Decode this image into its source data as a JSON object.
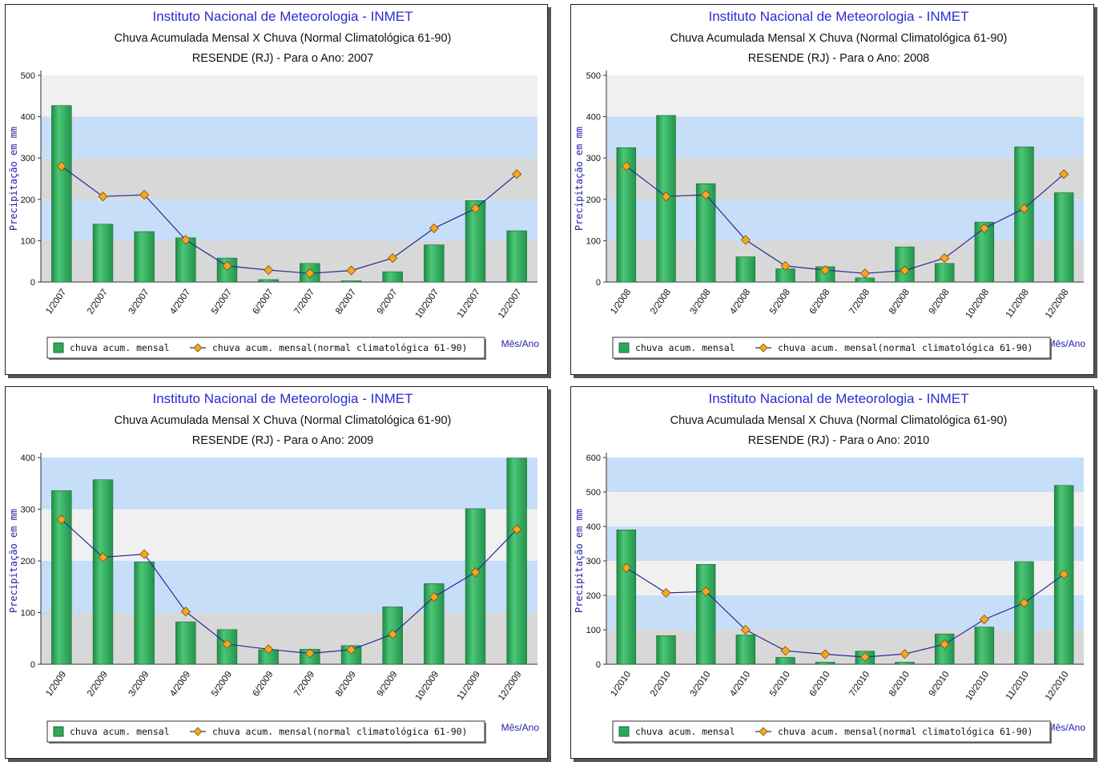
{
  "panels": [
    {
      "institute": "Instituto Nacional de Meteorologia - INMET",
      "title": "Chuva Acumulada Mensal X Chuva (Normal Climatológica 61-90)",
      "subtitle": "RESENDE (RJ) - Para o Ano: 2007",
      "xlabel": "Mês/Ano",
      "legend_bar": "chuva acum. mensal",
      "legend_line": "chuva acum. mensal(normal climatológica 61-90)"
    },
    {
      "institute": "Instituto Nacional de Meteorologia - INMET",
      "title": "Chuva Acumulada Mensal X Chuva (Normal Climatológica 61-90)",
      "subtitle": "RESENDE (RJ) - Para o Ano: 2008",
      "xlabel": "Mês/Ano",
      "legend_bar": "chuva acum. mensal",
      "legend_line": "chuva acum. mensal(normal climatológica 61-90)"
    },
    {
      "institute": "Instituto Nacional de Meteorologia - INMET",
      "title": "Chuva Acumulada Mensal X Chuva (Normal Climatológica 61-90)",
      "subtitle": "RESENDE (RJ) - Para o Ano: 2009",
      "xlabel": "Mês/Ano",
      "legend_bar": "chuva acum. mensal",
      "legend_line": "chuva acum. mensal(normal climatológica 61-90)"
    },
    {
      "institute": "Instituto Nacional de Meteorologia - INMET",
      "title": "Chuva Acumulada Mensal X Chuva (Normal Climatológica 61-90)",
      "subtitle": "RESENDE (RJ) - Para o Ano: 2010",
      "xlabel": "Mês/Ano",
      "legend_bar": "chuva acum. mensal",
      "legend_line": "chuva acum. mensal(normal climatológica 61-90)"
    }
  ],
  "colors": {
    "bar": "#2fa85a",
    "line": "#2a2a9a",
    "marker": "#f5a623",
    "band_light": "#f0f0f0",
    "band_blue": "#c6def8",
    "band_gray": "#d8d8d8",
    "title": "#2b2bd0"
  },
  "chart_data": [
    {
      "type": "bar",
      "categories": [
        "1/2007",
        "2/2007",
        "3/2007",
        "4/2007",
        "5/2007",
        "6/2007",
        "7/2007",
        "8/2007",
        "9/2007",
        "10/2007",
        "11/2007",
        "12/2007"
      ],
      "series": [
        {
          "name": "chuva acum. mensal",
          "type": "bar",
          "values": [
            427,
            140,
            122,
            107,
            58,
            6,
            45,
            3,
            25,
            90,
            197,
            124
          ]
        },
        {
          "name": "chuva acum. mensal(normal climatológica 61-90)",
          "type": "line",
          "values": [
            280,
            207,
            211,
            102,
            39,
            29,
            21,
            28,
            58,
            130,
            178,
            261
          ]
        }
      ],
      "ylabel": "Precipitação em mm",
      "xlabel": "Mês/Ano",
      "ylim": [
        0,
        500
      ],
      "yticks": [
        0,
        100,
        200,
        300,
        400,
        500
      ],
      "legend": "bottom",
      "grid": true
    },
    {
      "type": "bar",
      "categories": [
        "1/2008",
        "2/2008",
        "3/2008",
        "4/2008",
        "5/2008",
        "6/2008",
        "7/2008",
        "8/2008",
        "9/2008",
        "10/2008",
        "11/2008",
        "12/2008"
      ],
      "series": [
        {
          "name": "chuva acum. mensal",
          "type": "bar",
          "values": [
            325,
            403,
            238,
            61,
            32,
            37,
            10,
            85,
            45,
            145,
            327,
            216
          ]
        },
        {
          "name": "chuva acum. mensal(normal climatológica 61-90)",
          "type": "line",
          "values": [
            280,
            207,
            211,
            102,
            39,
            29,
            21,
            28,
            58,
            130,
            178,
            261
          ]
        }
      ],
      "ylabel": "Precipitação em mm",
      "xlabel": "Mês/Ano",
      "ylim": [
        0,
        500
      ],
      "yticks": [
        0,
        100,
        200,
        300,
        400,
        500
      ],
      "legend": "bottom",
      "grid": true
    },
    {
      "type": "bar",
      "categories": [
        "1/2009",
        "2/2009",
        "3/2009",
        "4/2009",
        "5/2009",
        "6/2009",
        "7/2009",
        "8/2009",
        "9/2009",
        "10/2009",
        "11/2009",
        "12/2009"
      ],
      "series": [
        {
          "name": "chuva acum. mensal",
          "type": "bar",
          "values": [
            336,
            357,
            198,
            82,
            67,
            28,
            29,
            36,
            111,
            156,
            301,
            399
          ]
        },
        {
          "name": "chuva acum. mensal(normal climatológica 61-90)",
          "type": "line",
          "values": [
            280,
            207,
            213,
            102,
            39,
            29,
            21,
            28,
            58,
            130,
            178,
            261
          ]
        }
      ],
      "ylabel": "Precipitação em mm",
      "xlabel": "Mês/Ano",
      "ylim": [
        0,
        400
      ],
      "yticks": [
        0,
        100,
        200,
        300,
        400
      ],
      "legend": "bottom",
      "grid": true
    },
    {
      "type": "bar",
      "categories": [
        "1/2010",
        "2/2010",
        "3/2010",
        "4/2010",
        "5/2010",
        "6/2010",
        "7/2010",
        "8/2010",
        "9/2010",
        "10/2010",
        "11/2010",
        "12/2010"
      ],
      "series": [
        {
          "name": "chuva acum. mensal",
          "type": "bar",
          "values": [
            390,
            83,
            290,
            85,
            20,
            6,
            38,
            6,
            88,
            108,
            298,
            519
          ]
        },
        {
          "name": "chuva acum. mensal(normal climatológica 61-90)",
          "type": "line",
          "values": [
            280,
            207,
            211,
            100,
            39,
            29,
            21,
            30,
            58,
            130,
            178,
            261
          ]
        }
      ],
      "ylabel": "Precipitação em mm",
      "xlabel": "Mês/Ano",
      "ylim": [
        0,
        600
      ],
      "yticks": [
        0,
        100,
        200,
        300,
        400,
        500,
        600
      ],
      "legend": "bottom",
      "grid": true
    }
  ]
}
